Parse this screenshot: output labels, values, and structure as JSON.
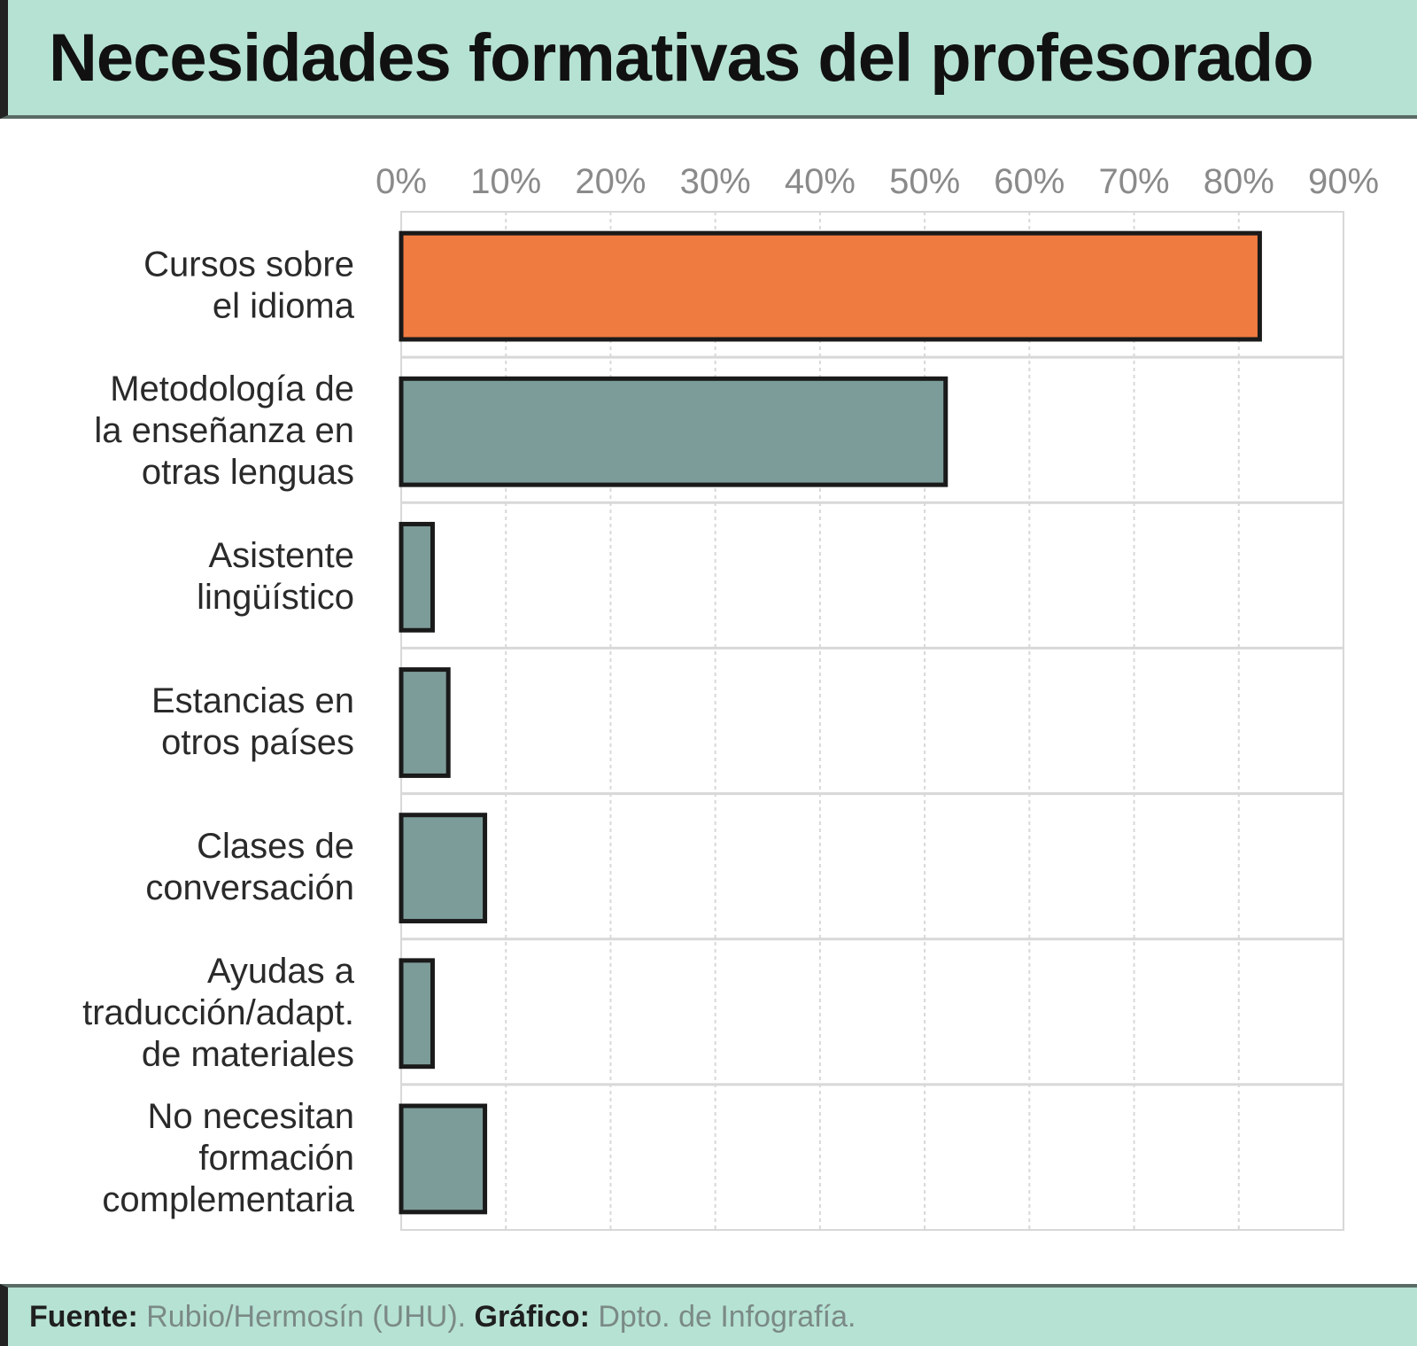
{
  "chart_data": {
    "type": "bar",
    "orientation": "horizontal",
    "title": "Necesidades formativas del profesorado",
    "categories": [
      [
        "Cursos sobre",
        "el idioma"
      ],
      [
        "Metodología de",
        "la enseñanza en",
        "otras lenguas"
      ],
      [
        "Asistente",
        "lingüístico"
      ],
      [
        "Estancias en",
        "otros países"
      ],
      [
        "Clases de",
        "conversación"
      ],
      [
        "Ayudas a",
        "traducción/adapt.",
        "de materiales"
      ],
      [
        "No necesitan",
        "formación",
        "complementaria"
      ]
    ],
    "values": [
      82,
      52,
      3,
      4.5,
      8,
      3,
      8
    ],
    "xlim": [
      0,
      90
    ],
    "xticks": [
      "0%",
      "10%",
      "20%",
      "30%",
      "40%",
      "50%",
      "60%",
      "70%",
      "80%",
      "90%"
    ],
    "x_axis_position": "top",
    "grid": true,
    "colors": {
      "highlight": "#f07b40",
      "default": "#7c9c99",
      "outline": "#1a1a1a",
      "grid": "#d8d8d8"
    },
    "highlight_index": 0
  },
  "footer": {
    "source_label": "Fuente:",
    "source_value": "Rubio/Hermosín (UHU).",
    "graphic_label": "Gráfico:",
    "graphic_value": "Dpto. de Infografía."
  }
}
